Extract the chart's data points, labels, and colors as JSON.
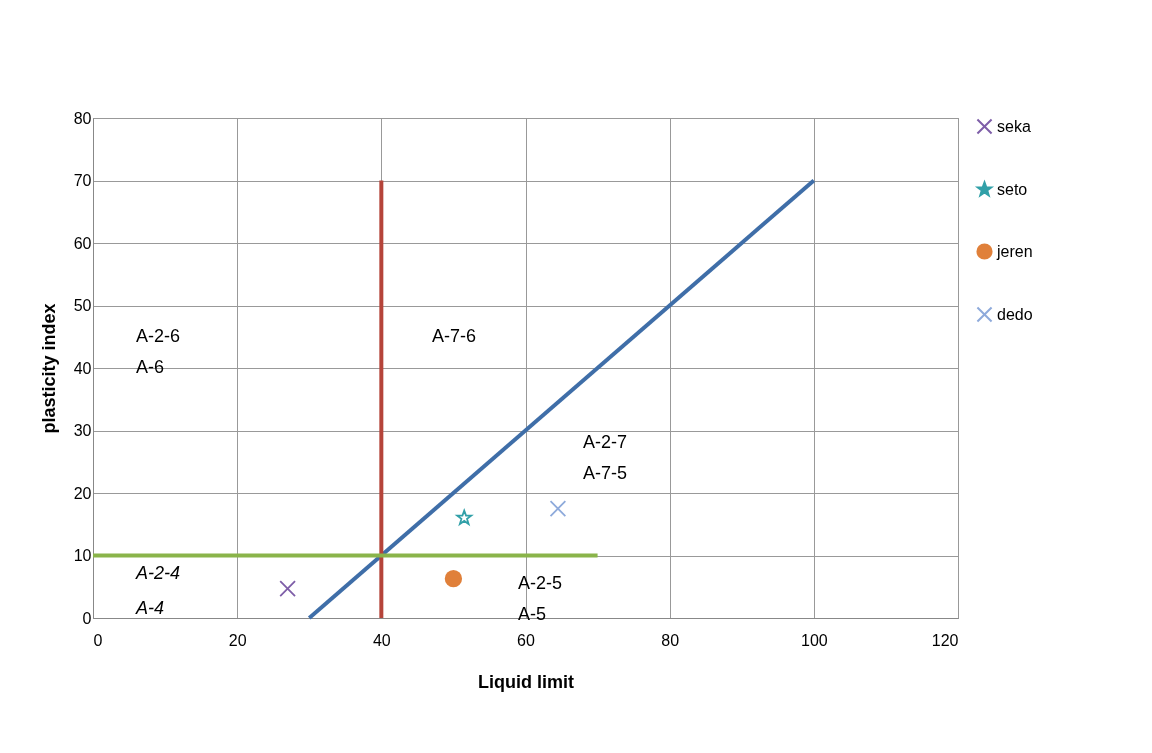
{
  "chart_data": {
    "type": "scatter",
    "xlabel": "Liquid limit",
    "ylabel": "plasticity index",
    "xlim": [
      0,
      120
    ],
    "ylim": [
      0,
      80
    ],
    "xticks": [
      0,
      20,
      40,
      60,
      80,
      100,
      120
    ],
    "yticks": [
      0,
      10,
      20,
      30,
      40,
      50,
      60,
      70,
      80
    ],
    "grid": true,
    "legend": "right",
    "series": [
      {
        "name": "seka",
        "color": "#7e5ea8",
        "marker": "cross",
        "x": [
          27
        ],
        "values": [
          4.7
        ]
      },
      {
        "name": "seto",
        "color": "#31a0a8",
        "marker": "star",
        "x": [
          51.5
        ],
        "values": [
          16
        ]
      },
      {
        "name": "jeren",
        "color": "#e0803a",
        "marker": "circle",
        "x": [
          50
        ],
        "values": [
          6.3
        ]
      },
      {
        "name": "dedo",
        "color": "#8eaadb",
        "marker": "cross",
        "x": [
          64.5
        ],
        "values": [
          17.5
        ]
      },
      {
        "type": "line",
        "color": "#3f6ea8",
        "x": [
          30,
          100
        ],
        "values": [
          0,
          70
        ]
      },
      {
        "type": "line",
        "color": "#b5443a",
        "x": [
          40,
          40
        ],
        "values": [
          0,
          70
        ]
      },
      {
        "type": "line",
        "color": "#8ab44a",
        "x": [
          0,
          70
        ],
        "values": [
          10,
          10
        ]
      }
    ],
    "annotations": [
      "A-2-6",
      "A-6",
      "A-7-6",
      "A-2-7",
      "A-7-5",
      "A-2-4",
      "A-4",
      "A-2-5",
      "A-5"
    ]
  }
}
